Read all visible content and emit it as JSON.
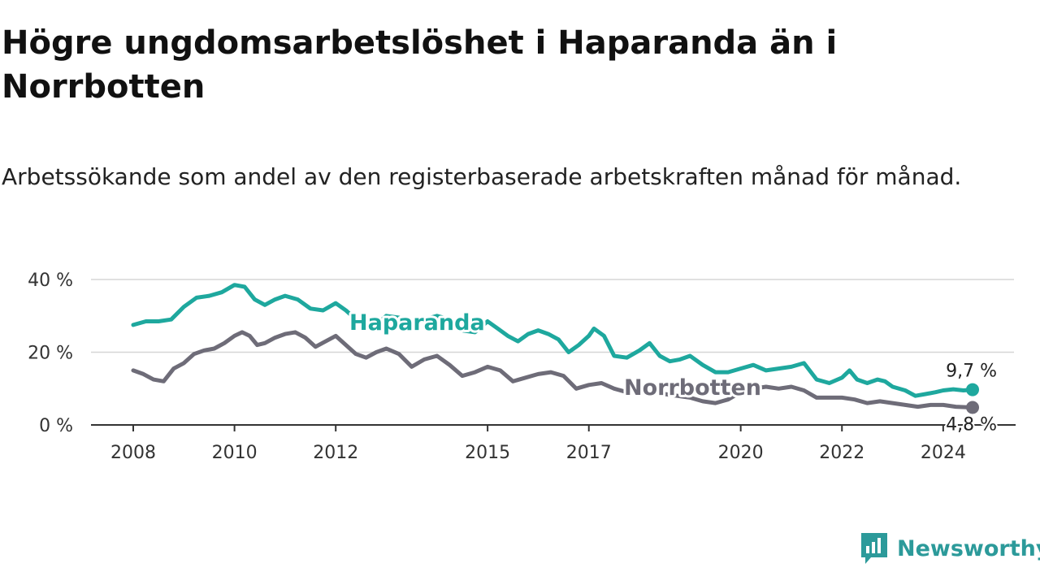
{
  "title": "Högre ungdomsarbetslöshet i Haparanda än i Norrbotten",
  "subtitle": "Arbetssökande som andel av den registerbaserade arbetskraften månad för månad.",
  "brand": {
    "name": "Newsworthy",
    "icon": "newsworthy-logo-icon",
    "color": "#2c9a9a"
  },
  "chart_data": {
    "type": "line",
    "title": "Högre ungdomsarbetslöshet i Haparanda än i Norrbotten",
    "subtitle": "Arbetssökande som andel av den registerbaserade arbetskraften månad för månad.",
    "xlabel": "",
    "ylabel": "",
    "x_ticks": [
      {
        "label": "2008",
        "x": 2008.0
      },
      {
        "label": "2010",
        "x": 2010.0
      },
      {
        "label": "2012",
        "x": 2012.0
      },
      {
        "label": "2015",
        "x": 2015.0
      },
      {
        "label": "2017",
        "x": 2017.0
      },
      {
        "label": "2020",
        "x": 2020.0
      },
      {
        "label": "2022",
        "x": 2022.0
      },
      {
        "label": "2024",
        "x": 2024.0
      }
    ],
    "y_ticks": [
      {
        "label": "0 %",
        "value": 0
      },
      {
        "label": "20 %",
        "value": 20
      },
      {
        "label": "40 %",
        "value": 40
      }
    ],
    "xlim": [
      2008.0,
      2024.58
    ],
    "ylim": [
      0,
      40
    ],
    "grid": true,
    "series": [
      {
        "name": "Haparanda",
        "color": "#1ea89e",
        "end_label": "9,7 %",
        "points": [
          [
            2008.0,
            27.5
          ],
          [
            2008.25,
            28.5
          ],
          [
            2008.5,
            28.5
          ],
          [
            2008.75,
            29.0
          ],
          [
            2009.0,
            32.5
          ],
          [
            2009.25,
            35.0
          ],
          [
            2009.5,
            35.5
          ],
          [
            2009.75,
            36.5
          ],
          [
            2010.0,
            38.5
          ],
          [
            2010.2,
            38.0
          ],
          [
            2010.4,
            34.5
          ],
          [
            2010.6,
            33.0
          ],
          [
            2010.8,
            34.5
          ],
          [
            2011.0,
            35.5
          ],
          [
            2011.25,
            34.5
          ],
          [
            2011.5,
            32.0
          ],
          [
            2011.75,
            31.5
          ],
          [
            2012.0,
            33.5
          ],
          [
            2012.2,
            31.5
          ],
          [
            2012.4,
            29.0
          ],
          [
            2012.6,
            27.0
          ],
          [
            2012.8,
            27.5
          ],
          [
            2013.0,
            30.0
          ],
          [
            2013.25,
            29.5
          ],
          [
            2013.5,
            27.5
          ],
          [
            2013.75,
            29.0
          ],
          [
            2014.0,
            30.0
          ],
          [
            2014.25,
            29.0
          ],
          [
            2014.5,
            26.0
          ],
          [
            2014.75,
            25.5
          ],
          [
            2015.0,
            28.5
          ],
          [
            2015.2,
            26.5
          ],
          [
            2015.4,
            24.5
          ],
          [
            2015.6,
            23.0
          ],
          [
            2015.8,
            25.0
          ],
          [
            2016.0,
            26.0
          ],
          [
            2016.2,
            25.0
          ],
          [
            2016.4,
            23.5
          ],
          [
            2016.6,
            20.0
          ],
          [
            2016.8,
            22.0
          ],
          [
            2017.0,
            24.5
          ],
          [
            2017.1,
            26.5
          ],
          [
            2017.3,
            24.5
          ],
          [
            2017.5,
            19.0
          ],
          [
            2017.75,
            18.5
          ],
          [
            2018.0,
            20.5
          ],
          [
            2018.2,
            22.5
          ],
          [
            2018.4,
            19.0
          ],
          [
            2018.6,
            17.5
          ],
          [
            2018.8,
            18.0
          ],
          [
            2019.0,
            19.0
          ],
          [
            2019.25,
            16.5
          ],
          [
            2019.5,
            14.5
          ],
          [
            2019.75,
            14.5
          ],
          [
            2020.0,
            15.5
          ],
          [
            2020.25,
            16.5
          ],
          [
            2020.5,
            15.0
          ],
          [
            2020.75,
            15.5
          ],
          [
            2021.0,
            16.0
          ],
          [
            2021.25,
            17.0
          ],
          [
            2021.5,
            12.5
          ],
          [
            2021.75,
            11.5
          ],
          [
            2022.0,
            13.0
          ],
          [
            2022.15,
            15.0
          ],
          [
            2022.3,
            12.5
          ],
          [
            2022.5,
            11.5
          ],
          [
            2022.7,
            12.5
          ],
          [
            2022.85,
            12.0
          ],
          [
            2023.0,
            10.5
          ],
          [
            2023.25,
            9.5
          ],
          [
            2023.45,
            8.0
          ],
          [
            2023.65,
            8.5
          ],
          [
            2023.85,
            9.0
          ],
          [
            2024.0,
            9.5
          ],
          [
            2024.2,
            9.8
          ],
          [
            2024.4,
            9.5
          ],
          [
            2024.58,
            9.7
          ]
        ]
      },
      {
        "name": "Norrbotten",
        "color": "#6e6c78",
        "end_label": "4,8 %",
        "points": [
          [
            2008.0,
            15.0
          ],
          [
            2008.2,
            14.0
          ],
          [
            2008.4,
            12.5
          ],
          [
            2008.6,
            12.0
          ],
          [
            2008.8,
            15.5
          ],
          [
            2009.0,
            17.0
          ],
          [
            2009.2,
            19.5
          ],
          [
            2009.4,
            20.5
          ],
          [
            2009.6,
            21.0
          ],
          [
            2009.8,
            22.5
          ],
          [
            2010.0,
            24.5
          ],
          [
            2010.15,
            25.5
          ],
          [
            2010.3,
            24.5
          ],
          [
            2010.45,
            22.0
          ],
          [
            2010.6,
            22.5
          ],
          [
            2010.8,
            24.0
          ],
          [
            2011.0,
            25.0
          ],
          [
            2011.2,
            25.5
          ],
          [
            2011.4,
            24.0
          ],
          [
            2011.6,
            21.5
          ],
          [
            2011.8,
            23.0
          ],
          [
            2012.0,
            24.5
          ],
          [
            2012.2,
            22.0
          ],
          [
            2012.4,
            19.5
          ],
          [
            2012.6,
            18.5
          ],
          [
            2012.8,
            20.0
          ],
          [
            2013.0,
            21.0
          ],
          [
            2013.25,
            19.5
          ],
          [
            2013.5,
            16.0
          ],
          [
            2013.75,
            18.0
          ],
          [
            2014.0,
            19.0
          ],
          [
            2014.25,
            16.5
          ],
          [
            2014.5,
            13.5
          ],
          [
            2014.75,
            14.5
          ],
          [
            2015.0,
            16.0
          ],
          [
            2015.25,
            15.0
          ],
          [
            2015.5,
            12.0
          ],
          [
            2015.75,
            13.0
          ],
          [
            2016.0,
            14.0
          ],
          [
            2016.25,
            14.5
          ],
          [
            2016.5,
            13.5
          ],
          [
            2016.75,
            10.0
          ],
          [
            2017.0,
            11.0
          ],
          [
            2017.25,
            11.5
          ],
          [
            2017.5,
            10.0
          ],
          [
            2017.75,
            9.0
          ],
          [
            2018.0,
            9.5
          ],
          [
            2018.5,
            8.5
          ],
          [
            2019.0,
            7.5
          ],
          [
            2019.25,
            6.5
          ],
          [
            2019.5,
            6.0
          ],
          [
            2019.75,
            7.0
          ],
          [
            2020.0,
            9.0
          ],
          [
            2020.25,
            10.0
          ],
          [
            2020.5,
            10.5
          ],
          [
            2020.75,
            10.0
          ],
          [
            2021.0,
            10.5
          ],
          [
            2021.25,
            9.5
          ],
          [
            2021.5,
            7.5
          ],
          [
            2021.75,
            7.5
          ],
          [
            2022.0,
            7.5
          ],
          [
            2022.25,
            7.0
          ],
          [
            2022.5,
            6.0
          ],
          [
            2022.75,
            6.5
          ],
          [
            2023.0,
            6.0
          ],
          [
            2023.25,
            5.5
          ],
          [
            2023.5,
            5.0
          ],
          [
            2023.75,
            5.5
          ],
          [
            2024.0,
            5.5
          ],
          [
            2024.25,
            5.0
          ],
          [
            2024.58,
            4.8
          ]
        ]
      }
    ]
  }
}
